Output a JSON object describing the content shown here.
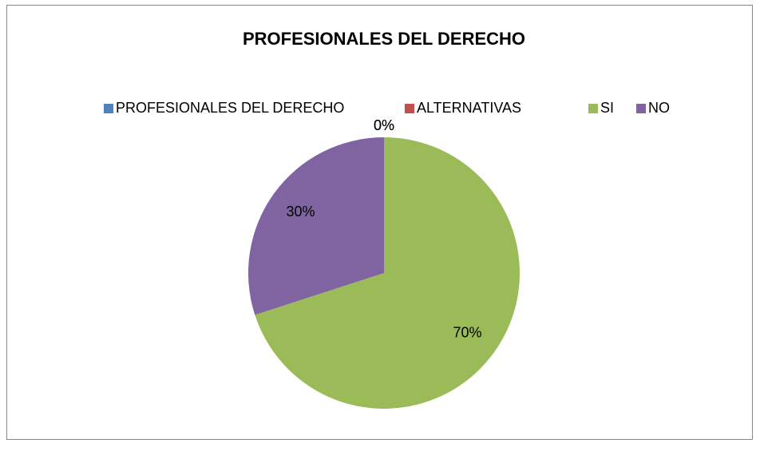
{
  "chart_data": {
    "type": "pie",
    "title": "PROFESIONALES DEL DERECHO",
    "categories": [
      "PROFESIONALES DEL DERECHO",
      "ALTERNATIVAS",
      "SI",
      "NO"
    ],
    "values": [
      0,
      0,
      70,
      30
    ],
    "value_labels": [
      "0%",
      "0%",
      "70%",
      "30%"
    ],
    "colors": [
      "#4f81bd",
      "#c0504d",
      "#9bbb59",
      "#8064a2"
    ],
    "legend": "top"
  }
}
